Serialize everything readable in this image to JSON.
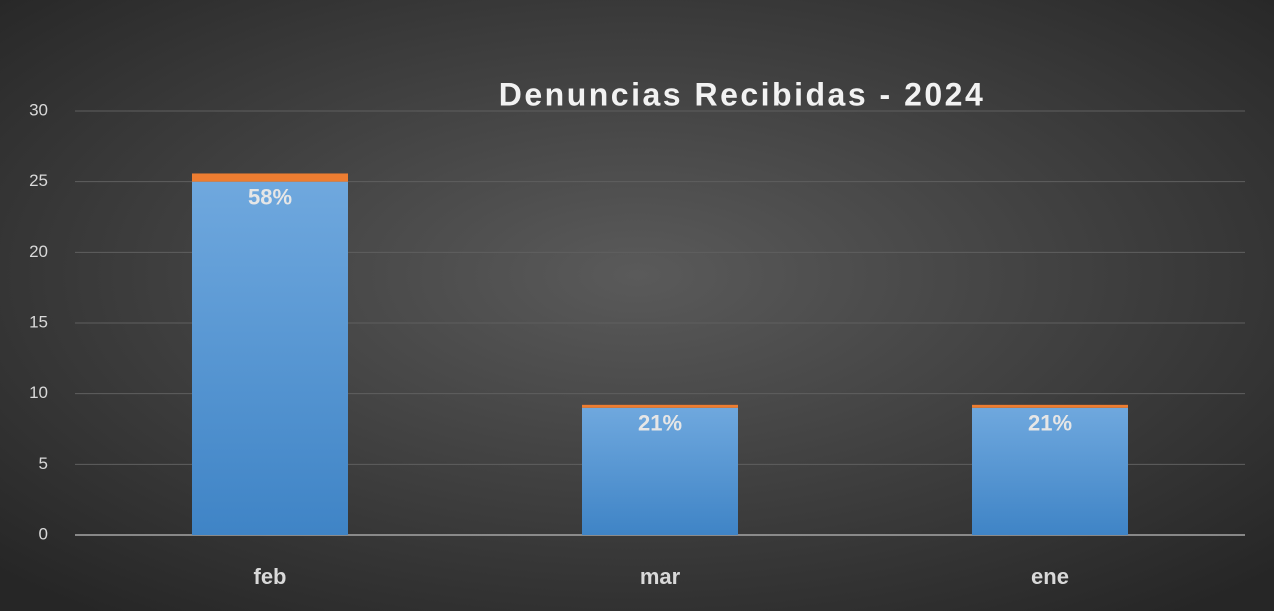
{
  "chart_data": {
    "type": "stacked_bar",
    "title": "Denuncias Recibidas - 2024",
    "categories": [
      "feb",
      "mar",
      "ene"
    ],
    "series": [
      {
        "color": "#5b9bd5",
        "values": [
          25,
          9,
          9
        ]
      },
      {
        "color": "#ed7d31",
        "values": [
          0.58,
          0.21,
          0.21
        ],
        "value_labels": [
          "58%",
          "21%",
          "21%"
        ]
      }
    ],
    "ylim": [
      0,
      30
    ],
    "yticks": [
      0,
      5,
      10,
      15,
      20,
      25,
      30
    ],
    "grid": true
  }
}
